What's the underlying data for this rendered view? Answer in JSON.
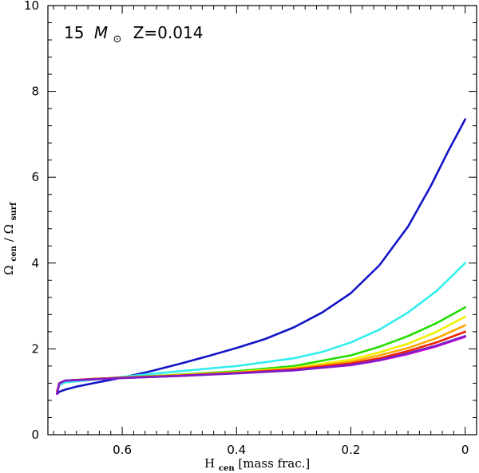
{
  "chart_data": {
    "type": "line",
    "title": "",
    "annotation": {
      "prefix": "15",
      "mass_symbol": "M",
      "sun_symbol": "⊙",
      "metallicity": "Z=0.014"
    },
    "xlabel": {
      "main": "H",
      "sub": "cen",
      "rest": " [mass frac.]"
    },
    "ylabel": {
      "num": "Ω",
      "num_sub": "cen",
      "sep": "/",
      "den": "Ω",
      "den_sub": "surf"
    },
    "xlim": [
      0.73,
      -0.02
    ],
    "ylim": [
      0,
      10
    ],
    "x_major_ticks": [
      0.6,
      0.4,
      0.2,
      0
    ],
    "x_tick_labels": [
      "0.6",
      "0.4",
      "0.2",
      "0"
    ],
    "x_minor_step": 0.02,
    "y_major_ticks": [
      0,
      2,
      4,
      6,
      8,
      10
    ],
    "y_tick_labels": [
      "0",
      "2",
      "4",
      "6",
      "8",
      "10"
    ],
    "y_minor_step": 0.4,
    "grid": false,
    "series": [
      {
        "name": "blue",
        "color": "#1414c8",
        "x": [
          0.714,
          0.71,
          0.7,
          0.68,
          0.65,
          0.6,
          0.55,
          0.5,
          0.45,
          0.4,
          0.35,
          0.3,
          0.25,
          0.2,
          0.15,
          0.1,
          0.06,
          0.03,
          0.0
        ],
        "y": [
          0.95,
          1.0,
          1.05,
          1.12,
          1.2,
          1.33,
          1.48,
          1.65,
          1.83,
          2.02,
          2.23,
          2.5,
          2.85,
          3.3,
          3.95,
          4.85,
          5.8,
          6.6,
          7.35
        ]
      },
      {
        "name": "cyan",
        "color": "#33eeee",
        "x": [
          0.714,
          0.71,
          0.7,
          0.65,
          0.6,
          0.5,
          0.4,
          0.3,
          0.25,
          0.2,
          0.15,
          0.1,
          0.05,
          0.0
        ],
        "y": [
          1.0,
          1.15,
          1.22,
          1.28,
          1.35,
          1.48,
          1.6,
          1.78,
          1.93,
          2.15,
          2.45,
          2.85,
          3.35,
          4.0
        ]
      },
      {
        "name": "green",
        "color": "#22dd00",
        "x": [
          0.714,
          0.71,
          0.7,
          0.65,
          0.6,
          0.5,
          0.4,
          0.3,
          0.2,
          0.15,
          0.1,
          0.05,
          0.0
        ],
        "y": [
          1.0,
          1.2,
          1.26,
          1.3,
          1.33,
          1.4,
          1.48,
          1.6,
          1.85,
          2.05,
          2.3,
          2.6,
          2.97
        ]
      },
      {
        "name": "yellow",
        "color": "#f0f000",
        "x": [
          0.714,
          0.71,
          0.7,
          0.65,
          0.6,
          0.5,
          0.4,
          0.3,
          0.2,
          0.15,
          0.1,
          0.05,
          0.0
        ],
        "y": [
          1.0,
          1.2,
          1.26,
          1.3,
          1.33,
          1.39,
          1.46,
          1.56,
          1.75,
          1.92,
          2.12,
          2.4,
          2.75
        ]
      },
      {
        "name": "orange",
        "color": "#ffa500",
        "x": [
          0.714,
          0.71,
          0.7,
          0.65,
          0.6,
          0.5,
          0.4,
          0.3,
          0.2,
          0.15,
          0.1,
          0.05,
          0.0
        ],
        "y": [
          1.0,
          1.2,
          1.26,
          1.3,
          1.33,
          1.38,
          1.45,
          1.54,
          1.7,
          1.85,
          2.02,
          2.25,
          2.55
        ]
      },
      {
        "name": "red",
        "color": "#ee2200",
        "x": [
          0.714,
          0.71,
          0.7,
          0.65,
          0.6,
          0.5,
          0.4,
          0.3,
          0.2,
          0.15,
          0.1,
          0.05,
          0.0
        ],
        "y": [
          1.0,
          1.2,
          1.26,
          1.3,
          1.33,
          1.38,
          1.44,
          1.52,
          1.66,
          1.78,
          1.95,
          2.15,
          2.4
        ]
      },
      {
        "name": "magenta",
        "color": "#dd00dd",
        "x": [
          0.714,
          0.71,
          0.7,
          0.65,
          0.6,
          0.5,
          0.4,
          0.3,
          0.2,
          0.15,
          0.1,
          0.05,
          0.0
        ],
        "y": [
          0.95,
          1.2,
          1.26,
          1.29,
          1.32,
          1.37,
          1.43,
          1.5,
          1.62,
          1.73,
          1.88,
          2.06,
          2.28
        ]
      },
      {
        "name": "purple",
        "color": "#7a1fc8",
        "x": [
          0.714,
          0.71,
          0.7,
          0.65,
          0.6,
          0.5,
          0.4,
          0.3,
          0.2,
          0.15,
          0.1,
          0.05,
          0.0
        ],
        "y": [
          0.97,
          1.2,
          1.26,
          1.29,
          1.32,
          1.37,
          1.43,
          1.5,
          1.63,
          1.74,
          1.9,
          2.08,
          2.3
        ]
      }
    ]
  }
}
